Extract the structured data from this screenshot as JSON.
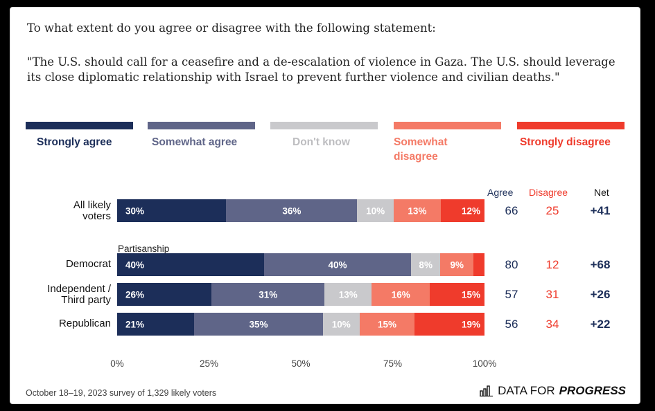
{
  "question": "To what extent do you agree or disagree with the following statement:",
  "statement": "\"The U.S. should call for a ceasefire and a de-escalation of violence in Gaza. The U.S. should leverage its close diplomatic relationship with Israel to prevent further violence and civilian deaths.\"",
  "legend": [
    {
      "label": "Strongly agree",
      "color": "#1c2e59"
    },
    {
      "label": "Somewhat agree",
      "color": "#5f6588"
    },
    {
      "label": "Don't know",
      "color": "#c9c9cc"
    },
    {
      "label": "Somewhat disagree",
      "color": "#f47a66"
    },
    {
      "label": "Strongly disagree",
      "color": "#ef3b2c"
    }
  ],
  "columns": {
    "agree": "Agree",
    "disagree": "Disagree",
    "net": "Net"
  },
  "section_label": "Partisanship",
  "footer": "October 18–19, 2023 survey of 1,329 likely voters",
  "brand": {
    "prefix": "DATA FOR",
    "emph": "PROGRESS"
  },
  "chart_data": {
    "type": "bar",
    "orientation": "horizontal",
    "stacked": true,
    "categories": [
      "All likely voters",
      "Democrat",
      "Independent / Third party",
      "Republican"
    ],
    "series": [
      {
        "name": "Strongly agree",
        "values": [
          30,
          40,
          26,
          21
        ],
        "labels": [
          "30%",
          "40%",
          "26%",
          "21%"
        ]
      },
      {
        "name": "Somewhat agree",
        "values": [
          36,
          40,
          31,
          35
        ],
        "labels": [
          "36%",
          "40%",
          "31%",
          "35%"
        ]
      },
      {
        "name": "Don't know",
        "values": [
          10,
          8,
          13,
          10
        ],
        "labels": [
          "10%",
          "8%",
          "13%",
          "10%"
        ]
      },
      {
        "name": "Somewhat disagree",
        "values": [
          13,
          9,
          16,
          15
        ],
        "labels": [
          "13%",
          "9%",
          "16%",
          "15%"
        ]
      },
      {
        "name": "Strongly disagree",
        "values": [
          12,
          3,
          15,
          19
        ],
        "labels": [
          "12%",
          "",
          "15%",
          "19%"
        ]
      }
    ],
    "agree": [
      66,
      80,
      57,
      56
    ],
    "disagree": [
      25,
      12,
      31,
      34
    ],
    "net": [
      "+41",
      "+68",
      "+26",
      "+22"
    ],
    "xticks": [
      "0%",
      "25%",
      "50%",
      "75%",
      "100%"
    ],
    "xlim": [
      0,
      100
    ],
    "legend_position": "top"
  }
}
